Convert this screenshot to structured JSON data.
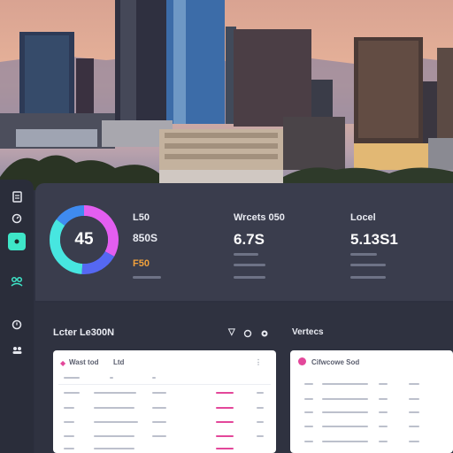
{
  "stats": {
    "donut_value": "45",
    "col1": {
      "title": "L50",
      "value": "850S",
      "badge": "F50"
    },
    "col2": {
      "title": "Wrcets 050",
      "value": "6.7S"
    },
    "col3": {
      "title": "Locel",
      "value": "5.13S1"
    }
  },
  "section": {
    "title": "Lcter Le300N",
    "right_title": "Vertecs"
  },
  "card_left": {
    "title": "Wast tod",
    "tag": "Ltd"
  },
  "card_right": {
    "title": "Cifwcowe Sod"
  },
  "sidebar": {
    "icons": [
      "file-icon",
      "clock-icon",
      "gear-icon",
      "people-icon",
      "history-icon",
      "users-icon"
    ]
  },
  "donut": {
    "segments": [
      {
        "color": "#e35ef0",
        "fraction": 0.33
      },
      {
        "color": "#5568f2",
        "fraction": 0.18
      },
      {
        "color": "#47e6e0",
        "fraction": 0.34
      },
      {
        "color": "#3f8bf0",
        "fraction": 0.15
      }
    ]
  },
  "colors": {
    "accent": "#3ee6c8",
    "pink": "#e3479a",
    "panel": "#3a3d4d"
  }
}
